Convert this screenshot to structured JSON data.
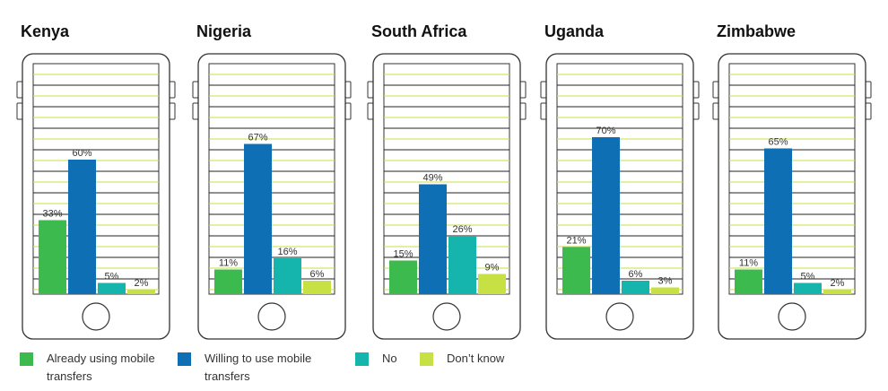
{
  "chart_data": {
    "type": "bar",
    "ylim": [
      0,
      100
    ],
    "series": [
      {
        "name": "Already using mobile transfers",
        "color": "#3dba4e"
      },
      {
        "name": "Willing to use mobile transfers",
        "color": "#0e6fb5"
      },
      {
        "name": "No",
        "color": "#15b5ad"
      },
      {
        "name": "Don't know",
        "color": "#c7e043"
      }
    ],
    "panels": [
      {
        "title": "Kenya",
        "values": [
          33,
          60,
          5,
          2
        ],
        "labels": [
          "33%",
          "60%",
          "5%",
          "2%"
        ]
      },
      {
        "title": "Nigeria",
        "values": [
          11,
          67,
          16,
          6
        ],
        "labels": [
          "11%",
          "67%",
          "16%",
          "6%"
        ]
      },
      {
        "title": "South Africa",
        "values": [
          15,
          49,
          26,
          9
        ],
        "labels": [
          "15%",
          "49%",
          "26%",
          "9%"
        ]
      },
      {
        "title": "Uganda",
        "values": [
          21,
          70,
          6,
          3
        ],
        "labels": [
          "21%",
          "70%",
          "6%",
          "3%"
        ]
      },
      {
        "title": "Zimbabwe",
        "values": [
          11,
          65,
          5,
          2
        ],
        "labels": [
          "11%",
          "65%",
          "5%",
          "2%"
        ]
      }
    ]
  },
  "legend": {
    "items": [
      {
        "label": "Already using mobile transfers",
        "color": "#3dba4e"
      },
      {
        "label": "Willing to use mobile transfers",
        "color": "#0e6fb5"
      },
      {
        "label": "No",
        "color": "#15b5ad"
      },
      {
        "label": "Don’t know",
        "color": "#c7e043"
      }
    ]
  },
  "icons": {
    "phone": "phone-outline-icon",
    "home_button": "home-button-icon"
  }
}
